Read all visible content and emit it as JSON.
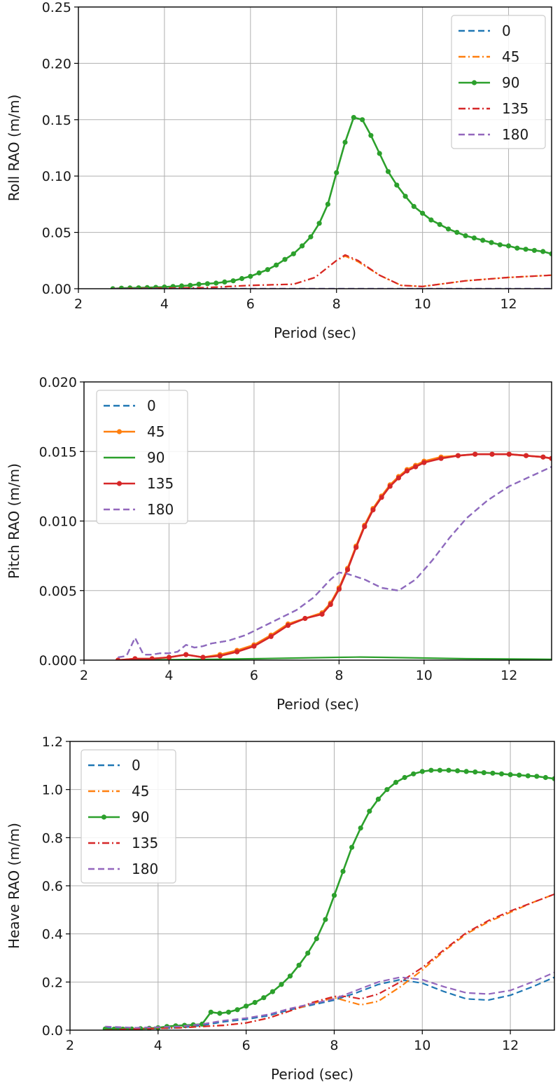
{
  "colors": {
    "0": "#1f77b4",
    "45": "#ff7f0e",
    "90": "#2ca02c",
    "135": "#d62728",
    "180": "#9467bd"
  },
  "chart_data": [
    {
      "type": "line",
      "xlabel": "Period (sec)",
      "ylabel": "Roll RAO (m/m)",
      "xlim": [
        2,
        13
      ],
      "ylim": [
        0,
        0.25
      ],
      "xticks": [
        2,
        4,
        6,
        8,
        10,
        12
      ],
      "yticks": [
        "0.00",
        "0.05",
        "0.10",
        "0.15",
        "0.20",
        "0.25"
      ],
      "grid": true,
      "legend_position": "top-right",
      "series": [
        {
          "name": "0",
          "color": "#1f77b4",
          "style": "dashed",
          "marker": false,
          "x": [
            2.8,
            4,
            6,
            8,
            10,
            12,
            13
          ],
          "y": [
            0,
            0,
            0,
            0,
            0,
            0,
            0
          ]
        },
        {
          "name": "45",
          "color": "#ff7f0e",
          "style": "dashdot",
          "marker": false,
          "x": [
            2.8,
            4,
            5,
            6,
            7,
            7.5,
            8,
            8.2,
            8.5,
            9,
            9.5,
            10,
            11,
            12,
            13
          ],
          "y": [
            0,
            0.0005,
            0.001,
            0.003,
            0.004,
            0.01,
            0.025,
            0.029,
            0.024,
            0.012,
            0.003,
            0.002,
            0.007,
            0.01,
            0.012
          ]
        },
        {
          "name": "90",
          "color": "#2ca02c",
          "style": "solid",
          "marker": true,
          "x": [
            2.8,
            3.0,
            3.2,
            3.4,
            3.6,
            3.8,
            4.0,
            4.2,
            4.4,
            4.6,
            4.8,
            5.0,
            5.2,
            5.4,
            5.6,
            5.8,
            6.0,
            6.2,
            6.4,
            6.6,
            6.8,
            7.0,
            7.2,
            7.4,
            7.6,
            7.8,
            8.0,
            8.2,
            8.4,
            8.6,
            8.8,
            9.0,
            9.2,
            9.4,
            9.6,
            9.8,
            10.0,
            10.2,
            10.4,
            10.6,
            10.8,
            11.0,
            11.2,
            11.4,
            11.6,
            11.8,
            12.0,
            12.2,
            12.4,
            12.6,
            12.8,
            13.0
          ],
          "y": [
            0.0,
            0.0005,
            0.0007,
            0.0008,
            0.001,
            0.0012,
            0.0015,
            0.002,
            0.0025,
            0.003,
            0.004,
            0.0045,
            0.005,
            0.006,
            0.007,
            0.009,
            0.011,
            0.014,
            0.017,
            0.021,
            0.026,
            0.031,
            0.038,
            0.046,
            0.058,
            0.075,
            0.103,
            0.13,
            0.152,
            0.15,
            0.136,
            0.12,
            0.104,
            0.092,
            0.082,
            0.073,
            0.067,
            0.061,
            0.057,
            0.053,
            0.05,
            0.047,
            0.045,
            0.043,
            0.041,
            0.039,
            0.038,
            0.036,
            0.035,
            0.034,
            0.033,
            0.031
          ]
        },
        {
          "name": "135",
          "color": "#d62728",
          "style": "dashdot",
          "marker": false,
          "x": [
            2.8,
            4,
            5,
            6,
            7,
            7.5,
            8,
            8.2,
            8.5,
            9,
            9.5,
            10,
            11,
            12,
            13
          ],
          "y": [
            0,
            0.0005,
            0.001,
            0.003,
            0.004,
            0.01,
            0.025,
            0.03,
            0.025,
            0.012,
            0.003,
            0.002,
            0.007,
            0.01,
            0.012
          ]
        },
        {
          "name": "180",
          "color": "#9467bd",
          "style": "dashed",
          "marker": false,
          "x": [
            2.8,
            4,
            6,
            8,
            10,
            12,
            13
          ],
          "y": [
            0,
            0,
            0,
            0,
            0,
            0,
            0
          ]
        }
      ]
    },
    {
      "type": "line",
      "xlabel": "Period (sec)",
      "ylabel": "Pitch RAO (m/m)",
      "xlim": [
        2,
        13
      ],
      "ylim": [
        0,
        0.02
      ],
      "xticks": [
        2,
        4,
        6,
        8,
        10,
        12
      ],
      "yticks": [
        "0.000",
        "0.005",
        "0.010",
        "0.015",
        "0.020"
      ],
      "grid": true,
      "legend_position": "top-left",
      "series": [
        {
          "name": "0",
          "color": "#1f77b4",
          "style": "dashed",
          "marker": false,
          "x": [
            2.8,
            3.0,
            3.2,
            3.4,
            3.6,
            3.8,
            4.0,
            4.2,
            4.4,
            4.6,
            4.8,
            5.0,
            5.4,
            5.8,
            6.2,
            6.6,
            7.0,
            7.4,
            7.8,
            8.0,
            8.2,
            8.6,
            9.0,
            9.4,
            9.8,
            10.2,
            10.6,
            11.0,
            11.5,
            12.0,
            12.5,
            13.0
          ],
          "y": [
            0.0002,
            0.0003,
            0.0016,
            0.0004,
            0.0004,
            0.0005,
            0.0005,
            0.0006,
            0.0011,
            0.0009,
            0.001,
            0.0012,
            0.0014,
            0.0018,
            0.0024,
            0.003,
            0.0036,
            0.0045,
            0.0058,
            0.0063,
            0.0062,
            0.0058,
            0.0052,
            0.005,
            0.0058,
            0.0072,
            0.0088,
            0.0102,
            0.0115,
            0.0125,
            0.0132,
            0.0139
          ]
        },
        {
          "name": "45",
          "color": "#ff7f0e",
          "style": "solid",
          "marker": true,
          "x": [
            2.8,
            3.2,
            3.6,
            4.0,
            4.4,
            4.8,
            5.2,
            5.6,
            6.0,
            6.4,
            6.8,
            7.2,
            7.6,
            7.8,
            8.0,
            8.2,
            8.4,
            8.6,
            8.8,
            9.0,
            9.2,
            9.4,
            9.6,
            9.8,
            10.0,
            10.4,
            10.8,
            11.2,
            11.6,
            12.0,
            12.4,
            12.8,
            13.0
          ],
          "y": [
            0.0,
            0.0001,
            0.0001,
            0.0002,
            0.0004,
            0.0002,
            0.0004,
            0.0007,
            0.0011,
            0.0018,
            0.0026,
            0.003,
            0.0034,
            0.0041,
            0.0052,
            0.0066,
            0.0082,
            0.0097,
            0.0109,
            0.0118,
            0.0126,
            0.0132,
            0.0137,
            0.014,
            0.0143,
            0.0146,
            0.0147,
            0.0148,
            0.0148,
            0.0148,
            0.0147,
            0.0146,
            0.0145
          ]
        },
        {
          "name": "90",
          "color": "#2ca02c",
          "style": "solid",
          "marker": false,
          "x": [
            2.8,
            4,
            5,
            6,
            7,
            8,
            8.5,
            9,
            10,
            11,
            12,
            13
          ],
          "y": [
            0,
            3e-05,
            6e-05,
            0.0001,
            0.00015,
            0.0002,
            0.00022,
            0.0002,
            0.00015,
            0.0001,
            8e-05,
            6e-05
          ]
        },
        {
          "name": "135",
          "color": "#d62728",
          "style": "solid",
          "marker": true,
          "x": [
            2.8,
            3.2,
            3.6,
            4.0,
            4.4,
            4.8,
            5.2,
            5.6,
            6.0,
            6.4,
            6.8,
            7.2,
            7.6,
            7.8,
            8.0,
            8.2,
            8.4,
            8.6,
            8.8,
            9.0,
            9.2,
            9.4,
            9.6,
            9.8,
            10.0,
            10.4,
            10.8,
            11.2,
            11.6,
            12.0,
            12.4,
            12.8,
            13.0
          ],
          "y": [
            0.0,
            0.0001,
            0.0001,
            0.0002,
            0.0004,
            0.0002,
            0.0003,
            0.0006,
            0.001,
            0.0017,
            0.0025,
            0.003,
            0.0033,
            0.004,
            0.0051,
            0.0065,
            0.0081,
            0.0096,
            0.0108,
            0.0117,
            0.0125,
            0.0131,
            0.0136,
            0.0139,
            0.0142,
            0.0145,
            0.0147,
            0.0148,
            0.0148,
            0.0148,
            0.0147,
            0.0146,
            0.0145
          ]
        },
        {
          "name": "180",
          "color": "#9467bd",
          "style": "dashed",
          "marker": false,
          "x": [
            2.8,
            3.0,
            3.2,
            3.4,
            3.6,
            3.8,
            4.0,
            4.2,
            4.4,
            4.6,
            4.8,
            5.0,
            5.4,
            5.8,
            6.2,
            6.6,
            7.0,
            7.4,
            7.8,
            8.0,
            8.2,
            8.6,
            9.0,
            9.4,
            9.8,
            10.2,
            10.6,
            11.0,
            11.5,
            12.0,
            12.5,
            13.0
          ],
          "y": [
            0.0002,
            0.0003,
            0.0016,
            0.0004,
            0.0004,
            0.0005,
            0.0005,
            0.0006,
            0.0011,
            0.0009,
            0.001,
            0.0012,
            0.0014,
            0.0018,
            0.0024,
            0.003,
            0.0036,
            0.0045,
            0.0058,
            0.0063,
            0.0062,
            0.0058,
            0.0052,
            0.005,
            0.0058,
            0.0072,
            0.0088,
            0.0102,
            0.0115,
            0.0125,
            0.0132,
            0.0139
          ]
        }
      ]
    },
    {
      "type": "line",
      "xlabel": "Period (sec)",
      "ylabel": "Heave RAO (m/m)",
      "xlim": [
        2,
        13
      ],
      "ylim": [
        0,
        1.2
      ],
      "xticks": [
        2,
        4,
        6,
        8,
        10,
        12
      ],
      "yticks": [
        "0.0",
        "0.2",
        "0.4",
        "0.6",
        "0.8",
        "1.0",
        "1.2"
      ],
      "grid": true,
      "legend_position": "top-left",
      "series": [
        {
          "name": "0",
          "color": "#1f77b4",
          "style": "dashed",
          "marker": false,
          "x": [
            2.8,
            3.5,
            4.5,
            5.0,
            5.5,
            6.0,
            6.5,
            7.0,
            7.5,
            8.0,
            8.5,
            9.0,
            9.5,
            10.0,
            10.5,
            11.0,
            11.5,
            12.0,
            12.5,
            13.0
          ],
          "y": [
            0.01,
            0.005,
            0.01,
            0.02,
            0.035,
            0.045,
            0.06,
            0.085,
            0.105,
            0.125,
            0.155,
            0.19,
            0.21,
            0.195,
            0.16,
            0.13,
            0.125,
            0.145,
            0.18,
            0.22
          ]
        },
        {
          "name": "45",
          "color": "#ff7f0e",
          "style": "dashdot",
          "marker": false,
          "x": [
            2.8,
            3.5,
            4.5,
            5.0,
            5.5,
            6.0,
            6.5,
            7.0,
            7.5,
            8.0,
            8.3,
            8.6,
            9.0,
            9.5,
            10.0,
            10.5,
            11.0,
            11.5,
            12.0,
            12.5,
            13.0
          ],
          "y": [
            0.0,
            0.005,
            0.01,
            0.015,
            0.02,
            0.03,
            0.05,
            0.08,
            0.11,
            0.135,
            0.12,
            0.105,
            0.12,
            0.18,
            0.25,
            0.33,
            0.4,
            0.45,
            0.49,
            0.53,
            0.565
          ]
        },
        {
          "name": "90",
          "color": "#2ca02c",
          "style": "solid",
          "marker": true,
          "x": [
            2.8,
            3.0,
            3.2,
            3.4,
            3.6,
            3.8,
            4.0,
            4.2,
            4.4,
            4.6,
            4.8,
            5.0,
            5.2,
            5.4,
            5.6,
            5.8,
            6.0,
            6.2,
            6.4,
            6.6,
            6.8,
            7.0,
            7.2,
            7.4,
            7.6,
            7.8,
            8.0,
            8.2,
            8.4,
            8.6,
            8.8,
            9.0,
            9.2,
            9.4,
            9.6,
            9.8,
            10.0,
            10.2,
            10.4,
            10.6,
            10.8,
            11.0,
            11.2,
            11.4,
            11.6,
            11.8,
            12.0,
            12.2,
            12.4,
            12.6,
            12.8,
            13.0
          ],
          "y": [
            0.005,
            0.004,
            0.004,
            0.005,
            0.006,
            0.008,
            0.01,
            0.015,
            0.018,
            0.02,
            0.022,
            0.025,
            0.075,
            0.07,
            0.075,
            0.085,
            0.1,
            0.115,
            0.135,
            0.16,
            0.19,
            0.225,
            0.27,
            0.32,
            0.38,
            0.46,
            0.56,
            0.66,
            0.76,
            0.84,
            0.91,
            0.96,
            1.0,
            1.03,
            1.05,
            1.065,
            1.075,
            1.08,
            1.08,
            1.08,
            1.078,
            1.075,
            1.073,
            1.07,
            1.068,
            1.065,
            1.062,
            1.06,
            1.057,
            1.055,
            1.05,
            1.045
          ]
        },
        {
          "name": "135",
          "color": "#d62728",
          "style": "dashdot",
          "marker": false,
          "x": [
            2.8,
            3.5,
            4.5,
            5.0,
            5.5,
            6.0,
            6.5,
            7.0,
            7.5,
            8.0,
            8.3,
            8.6,
            9.0,
            9.5,
            10.0,
            10.5,
            11.0,
            11.5,
            12.0,
            12.5,
            13.0
          ],
          "y": [
            0.0,
            0.005,
            0.01,
            0.015,
            0.02,
            0.03,
            0.05,
            0.08,
            0.115,
            0.14,
            0.14,
            0.13,
            0.15,
            0.2,
            0.26,
            0.335,
            0.405,
            0.455,
            0.495,
            0.53,
            0.565
          ]
        },
        {
          "name": "180",
          "color": "#9467bd",
          "style": "dashed",
          "marker": false,
          "x": [
            2.8,
            3.5,
            4.5,
            5.0,
            5.5,
            6.0,
            6.5,
            7.0,
            7.5,
            8.0,
            8.5,
            9.0,
            9.5,
            10.0,
            10.5,
            11.0,
            11.5,
            12.0,
            12.5,
            13.0
          ],
          "y": [
            0.015,
            0.01,
            0.015,
            0.025,
            0.04,
            0.05,
            0.065,
            0.09,
            0.11,
            0.13,
            0.165,
            0.2,
            0.22,
            0.21,
            0.18,
            0.155,
            0.15,
            0.165,
            0.2,
            0.24
          ]
        }
      ]
    }
  ]
}
